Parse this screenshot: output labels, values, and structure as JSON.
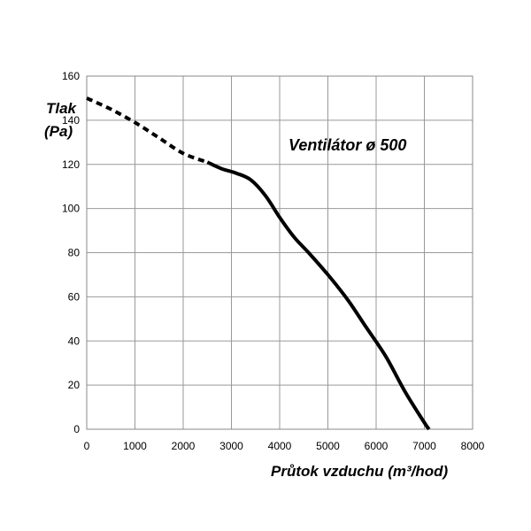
{
  "chart_data": {
    "type": "line",
    "title": "Ventilátor ø 500",
    "xlabel": "Průtok vzduchu (m³/hod)",
    "ylabel_line1": "Tlak",
    "ylabel_line2": "(Pa)",
    "xlim": [
      0,
      8000
    ],
    "ylim": [
      0,
      160
    ],
    "xticks": [
      "0",
      "1000",
      "2000",
      "3000",
      "4000",
      "5000",
      "6000",
      "7000",
      "8000"
    ],
    "yticks": [
      "0",
      "20",
      "40",
      "60",
      "80",
      "100",
      "120",
      "140",
      "160"
    ],
    "grid": true,
    "series": [
      {
        "style": "dashed",
        "x": [
          0,
          500,
          1000,
          1500,
          2000,
          2500
        ],
        "y": [
          150,
          145,
          139,
          132,
          125,
          121
        ]
      },
      {
        "style": "solid",
        "x": [
          2500,
          2800,
          3100,
          3400,
          3700,
          4000,
          4300,
          4600,
          5000,
          5400,
          5800,
          6200,
          6600,
          7000,
          7100
        ],
        "y": [
          121,
          118,
          116,
          113,
          106,
          96,
          87,
          80,
          70,
          59,
          46,
          33,
          17,
          3,
          0
        ]
      }
    ]
  }
}
